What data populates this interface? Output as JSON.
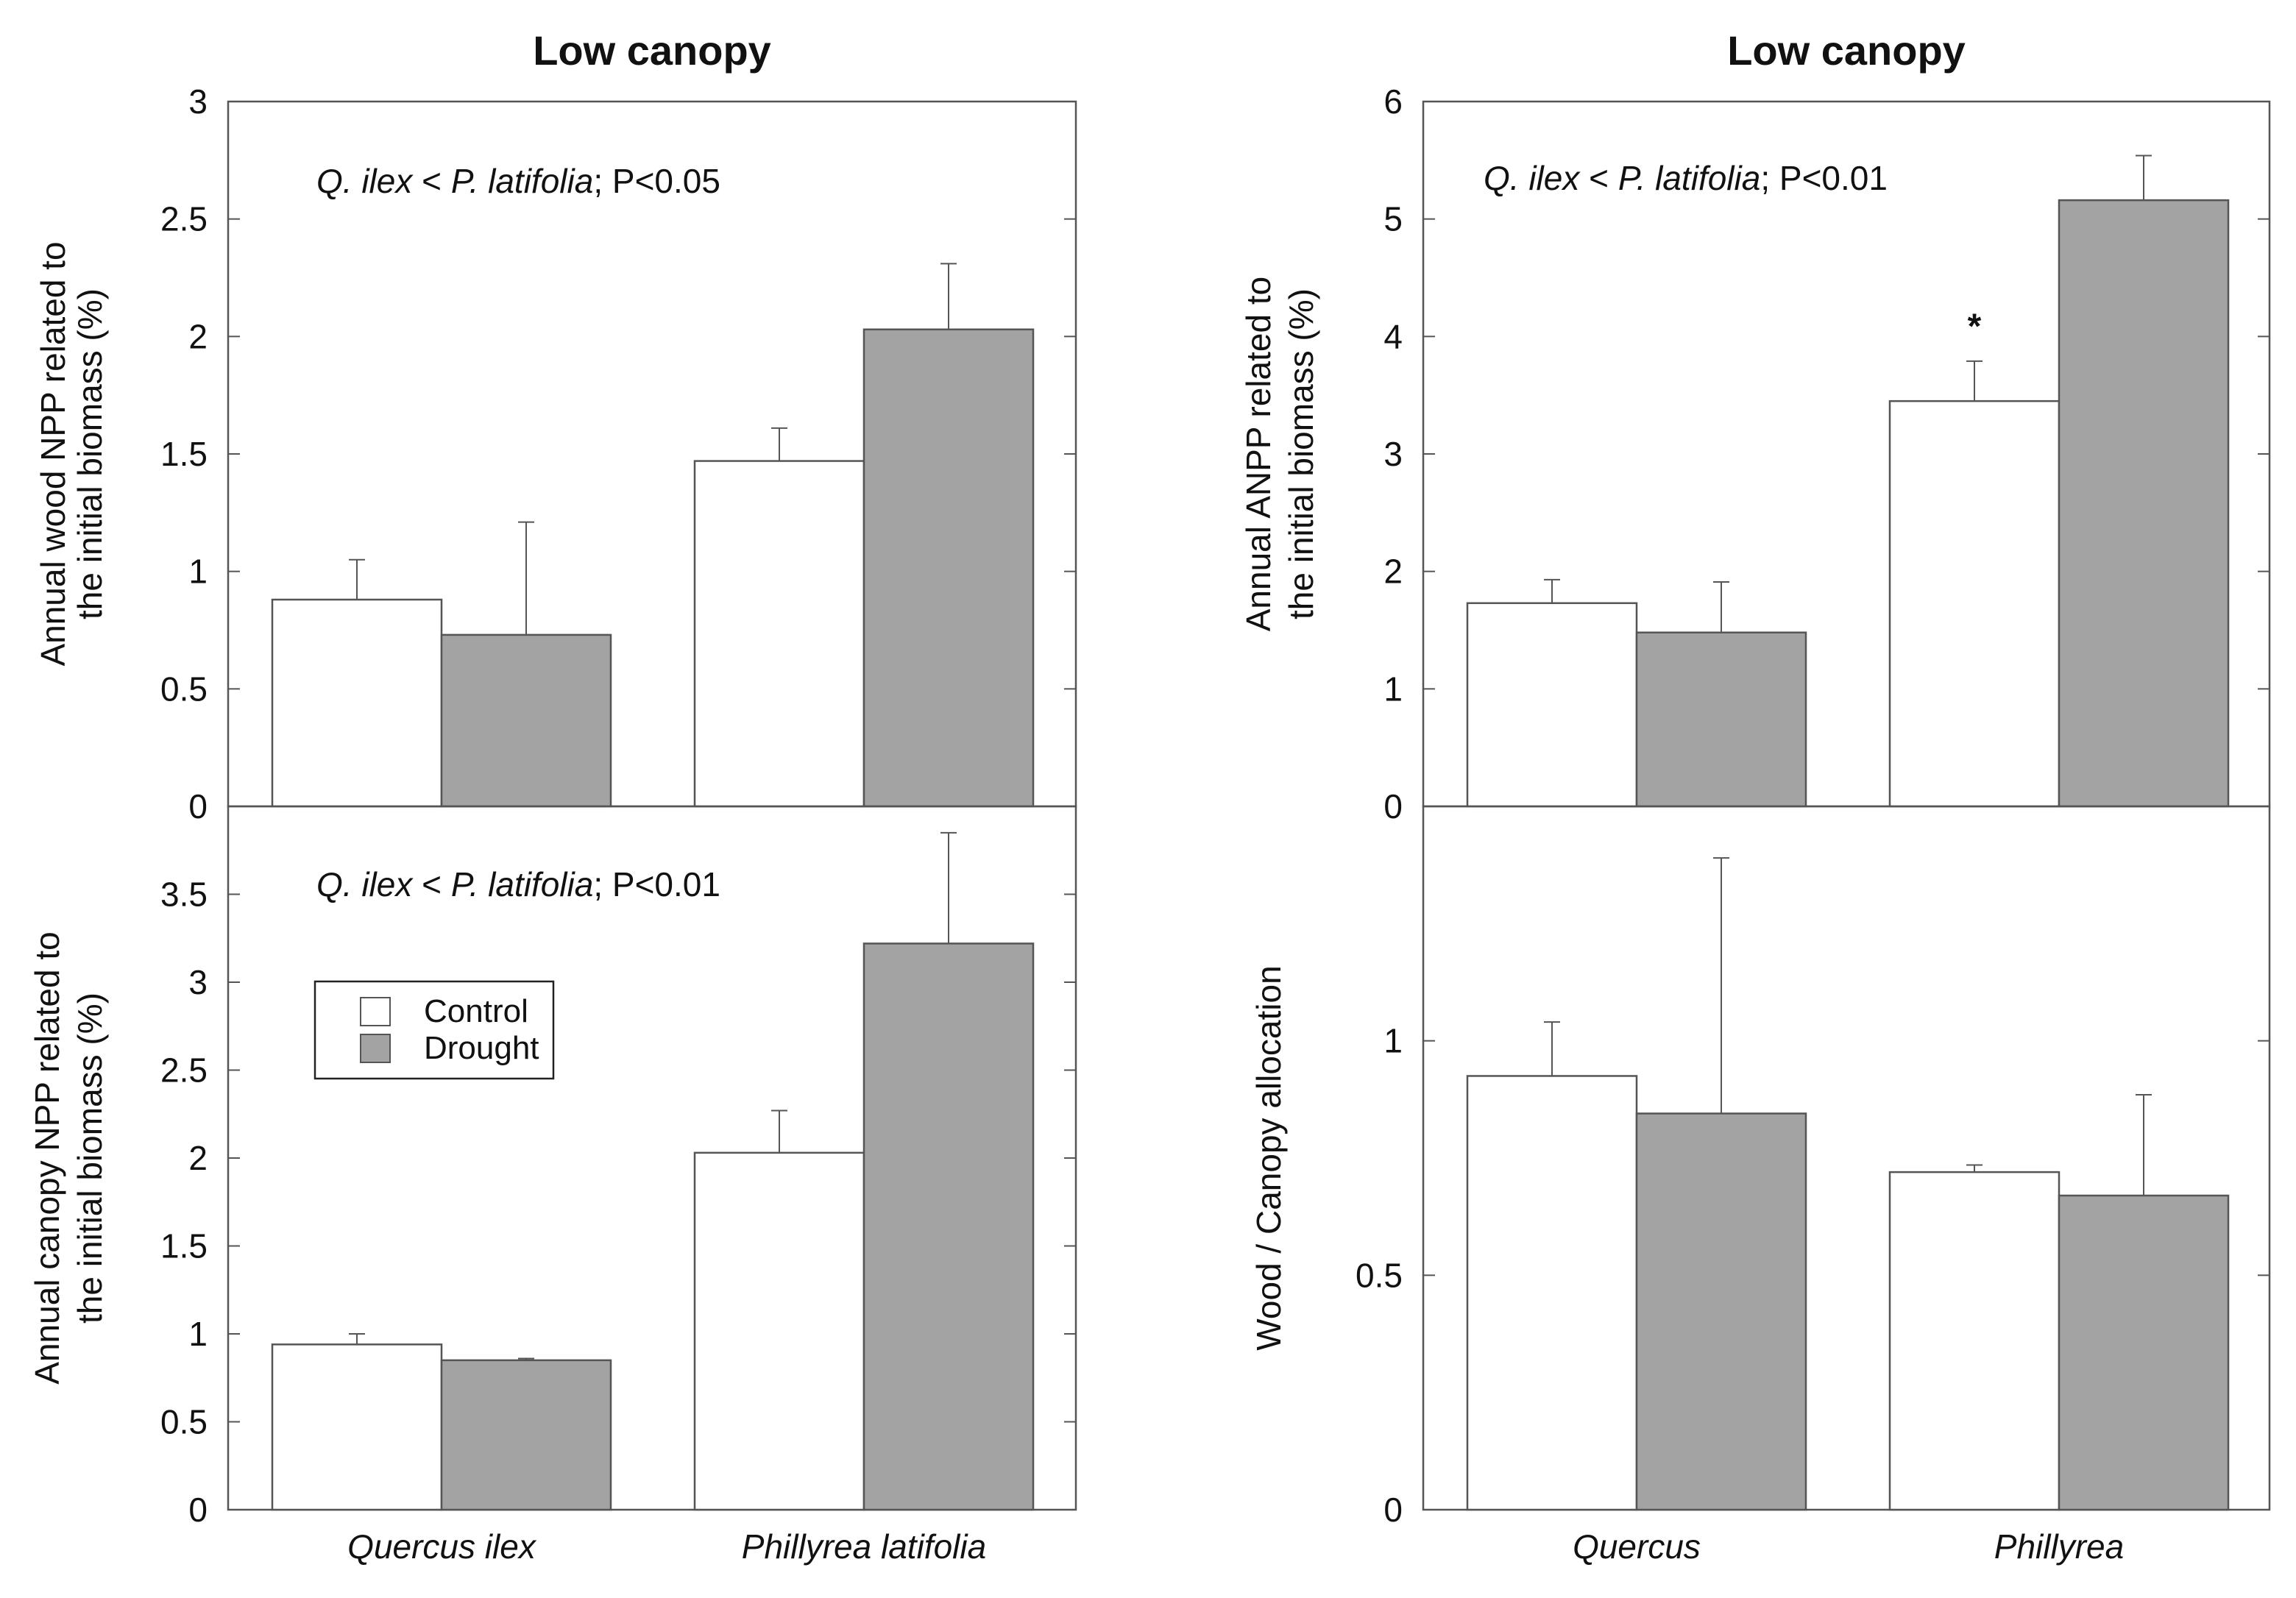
{
  "colors": {
    "control": "#ffffff",
    "drought": "#a3a3a3",
    "axis": "#555555",
    "text": "#111111"
  },
  "legend": {
    "items": [
      {
        "label": "Control",
        "color": "#ffffff"
      },
      {
        "label": "Drought",
        "color": "#a3a3a3"
      }
    ]
  },
  "chart_data": [
    {
      "type": "bar",
      "title": "Low canopy",
      "ylabel": [
        "Annual wood NPP related to",
        "the initial biomass (%)"
      ],
      "ylim": [
        0,
        3
      ],
      "yticks": [
        "0",
        "0.5",
        "1",
        "1.5",
        "2",
        "2.5",
        "3"
      ],
      "categories": [
        "Quercus ilex",
        "Phillyrea latifolia"
      ],
      "series": [
        {
          "name": "Control",
          "values": [
            0.88,
            1.47
          ],
          "errors": [
            0.17,
            0.14
          ]
        },
        {
          "name": "Drought",
          "values": [
            0.73,
            2.03
          ],
          "errors": [
            0.48,
            0.28
          ]
        }
      ],
      "annotation": {
        "italic_1": "Q. ilex",
        "mid": " < ",
        "italic_2": "P. latifolia",
        "tail": "; P<0.05"
      },
      "markers": []
    },
    {
      "type": "bar",
      "title": "Low canopy",
      "ylabel": [
        "Annual ANPP related to",
        "the initial biomass (%)"
      ],
      "ylim": [
        0,
        6
      ],
      "yticks": [
        "0",
        "1",
        "2",
        "3",
        "4",
        "5",
        "6"
      ],
      "categories": [
        "Quercus",
        "Phillyrea"
      ],
      "series": [
        {
          "name": "Control",
          "values": [
            1.73,
            3.45
          ],
          "errors": [
            0.2,
            0.34
          ]
        },
        {
          "name": "Drought",
          "values": [
            1.48,
            5.16
          ],
          "errors": [
            0.43,
            0.38
          ]
        }
      ],
      "annotation": {
        "italic_1": "Q. ilex",
        "mid": " < ",
        "italic_2": "P. latifolia",
        "tail": "; P<0.01"
      },
      "markers": [
        {
          "text": "*",
          "category": 1,
          "series": 0,
          "value": 4.15
        }
      ]
    },
    {
      "type": "bar",
      "title": "",
      "ylabel": [
        "Annual canopy NPP related to",
        "the initial biomass (%)"
      ],
      "ylim": [
        0,
        4
      ],
      "yticks": [
        "0",
        "0.5",
        "1",
        "1.5",
        "2",
        "2.5",
        "3",
        "3.5"
      ],
      "categories": [
        "Quercus ilex",
        "Phillyrea latifolia"
      ],
      "series": [
        {
          "name": "Control",
          "values": [
            0.94,
            2.03
          ],
          "errors": [
            0.06,
            0.24
          ]
        },
        {
          "name": "Drought",
          "values": [
            0.85,
            3.22
          ],
          "errors": [
            0.01,
            0.63
          ]
        }
      ],
      "annotation": {
        "italic_1": "Q. ilex",
        "mid": " < ",
        "italic_2": "P. latifolia",
        "tail": "; P<0.01"
      },
      "markers": []
    },
    {
      "type": "bar",
      "title": "",
      "ylabel": [
        "Wood  / Canopy allocation"
      ],
      "ylim": [
        0,
        1.5
      ],
      "yticks": [
        "0",
        "0.5",
        "1"
      ],
      "categories": [
        "Quercus",
        "Phillyrea"
      ],
      "series": [
        {
          "name": "Control",
          "values": [
            0.925,
            0.72
          ],
          "errors": [
            0.115,
            0.015
          ]
        },
        {
          "name": "Drought",
          "values": [
            0.845,
            0.67
          ],
          "errors": [
            0.545,
            0.215
          ]
        }
      ],
      "annotation": null,
      "markers": []
    }
  ]
}
